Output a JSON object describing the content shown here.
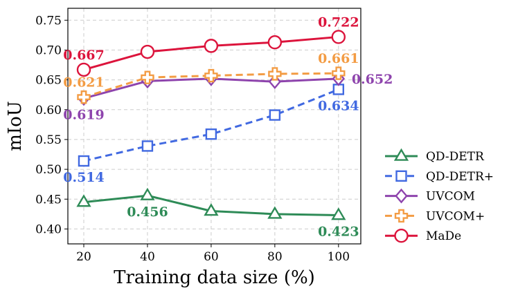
{
  "chart_data": {
    "type": "line",
    "title": "",
    "xlabel": "Training data size (%)",
    "ylabel": "mIoU",
    "x": [
      20,
      40,
      60,
      80,
      100
    ],
    "xlim": [
      15,
      107
    ],
    "ylim": [
      0.375,
      0.77
    ],
    "xticks": [
      "20",
      "40",
      "60",
      "80",
      "100"
    ],
    "yticks": [
      "0.40",
      "0.45",
      "0.50",
      "0.55",
      "0.60",
      "0.65",
      "0.70",
      "0.75"
    ],
    "grid": true,
    "legend_position": "outside-right-bottom",
    "series": [
      {
        "name": "QD-DETR",
        "values": [
          0.445,
          0.456,
          0.43,
          0.425,
          0.423
        ],
        "color": "#2e8b57",
        "marker": "triangle",
        "dashed": false
      },
      {
        "name": "QD-DETR+",
        "values": [
          0.514,
          0.539,
          0.559,
          0.591,
          0.634
        ],
        "color": "#4169e1",
        "marker": "square",
        "dashed": true
      },
      {
        "name": "UVCOM",
        "values": [
          0.619,
          0.648,
          0.652,
          0.647,
          0.652
        ],
        "color": "#8e44ad",
        "marker": "diamond",
        "dashed": false
      },
      {
        "name": "UVCOM+",
        "values": [
          0.621,
          0.654,
          0.657,
          0.66,
          0.661
        ],
        "color": "#f39c44",
        "marker": "plus",
        "dashed": true
      },
      {
        "name": "MaDe",
        "values": [
          0.667,
          0.697,
          0.707,
          0.713,
          0.722
        ],
        "color": "#dc143c",
        "marker": "circle",
        "dashed": false
      }
    ],
    "annotations": [
      {
        "series": "QD-DETR",
        "x": 40,
        "text": "0.456",
        "pos": "below"
      },
      {
        "series": "QD-DETR",
        "x": 100,
        "text": "0.423",
        "pos": "below"
      },
      {
        "series": "QD-DETR+",
        "x": 20,
        "text": "0.514",
        "pos": "below"
      },
      {
        "series": "QD-DETR+",
        "x": 100,
        "text": "0.634",
        "pos": "below"
      },
      {
        "series": "UVCOM",
        "x": 20,
        "text": "0.619",
        "pos": "below"
      },
      {
        "series": "UVCOM",
        "x": 100,
        "text": "0.652",
        "pos": "right"
      },
      {
        "series": "UVCOM+",
        "x": 20,
        "text": "0.621",
        "pos": "above"
      },
      {
        "series": "UVCOM+",
        "x": 100,
        "text": "0.661",
        "pos": "above"
      },
      {
        "series": "MaDe",
        "x": 20,
        "text": "0.667",
        "pos": "above"
      },
      {
        "series": "MaDe",
        "x": 100,
        "text": "0.722",
        "pos": "above"
      }
    ]
  }
}
